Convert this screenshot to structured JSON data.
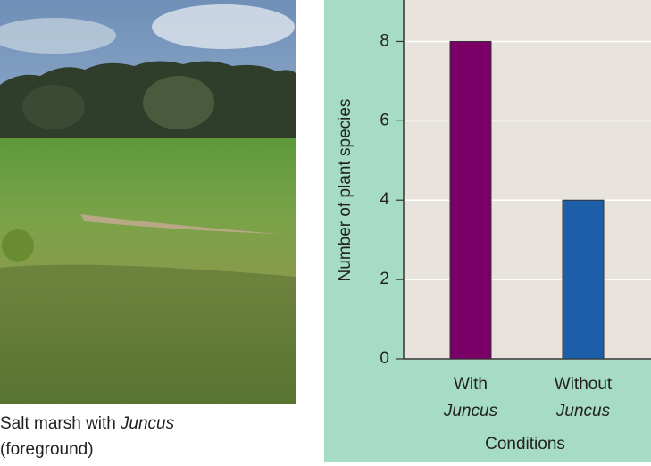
{
  "caption": [
    "Salt marsh with",
    "Juncus",
    "(foreground)"
  ],
  "chart_data": {
    "type": "bar",
    "y_label": "Number of plant species",
    "x_label": "Conditions",
    "categories": [
      [
        "With",
        "Juncus"
      ],
      [
        "Without",
        "Juncus"
      ]
    ],
    "series": [
      {
        "name": null,
        "colors": [
          "#7a0068",
          "#1d5ea8"
        ],
        "values": [
          8,
          4
        ]
      }
    ],
    "ylim": [
      0,
      9
    ],
    "yticks": [
      0,
      2,
      4,
      6,
      8
    ],
    "grid": true
  }
}
